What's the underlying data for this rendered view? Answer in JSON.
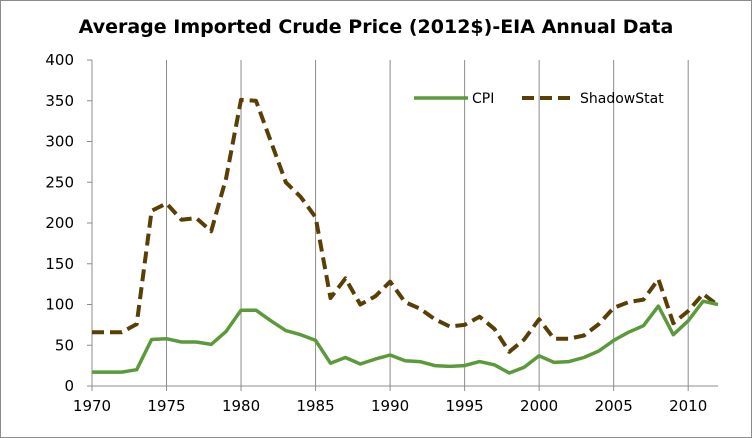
{
  "chart_data": {
    "type": "line",
    "title": "Average Imported Crude Price (2012$)-EIA Annual Data",
    "xlabel": "",
    "ylabel": "",
    "xlim": [
      1970,
      2012
    ],
    "ylim": [
      0,
      400
    ],
    "x_ticks": [
      1970,
      1975,
      1980,
      1985,
      1990,
      1995,
      2000,
      2005,
      2010
    ],
    "y_ticks": [
      0,
      50,
      100,
      150,
      200,
      250,
      300,
      350,
      400
    ],
    "grid": "vertical",
    "legend_position": "top-right",
    "x": [
      1970,
      1971,
      1972,
      1973,
      1974,
      1975,
      1976,
      1977,
      1978,
      1979,
      1980,
      1981,
      1982,
      1983,
      1984,
      1985,
      1986,
      1987,
      1988,
      1989,
      1990,
      1991,
      1992,
      1993,
      1994,
      1995,
      1996,
      1997,
      1998,
      1999,
      2000,
      2001,
      2002,
      2003,
      2004,
      2005,
      2006,
      2007,
      2008,
      2009,
      2010,
      2011,
      2012
    ],
    "series": [
      {
        "name": "CPI",
        "color": "#5b9a3a",
        "style": "solid",
        "values": [
          17,
          17,
          17,
          20,
          57,
          58,
          54,
          54,
          51,
          67,
          93,
          93,
          80,
          68,
          63,
          56,
          28,
          35,
          27,
          33,
          38,
          31,
          30,
          25,
          24,
          25,
          30,
          26,
          16,
          23,
          37,
          29,
          30,
          35,
          43,
          56,
          66,
          74,
          98,
          63,
          80,
          104,
          100
        ]
      },
      {
        "name": "ShadowStat",
        "color": "#5a3f05",
        "style": "dashed",
        "values": [
          66,
          66,
          66,
          76,
          215,
          224,
          204,
          206,
          190,
          255,
          351,
          350,
          300,
          250,
          232,
          207,
          108,
          132,
          100,
          110,
          128,
          103,
          95,
          82,
          73,
          75,
          85,
          70,
          42,
          57,
          82,
          58,
          58,
          62,
          76,
          96,
          103,
          106,
          131,
          77,
          92,
          113,
          99
        ]
      }
    ]
  }
}
